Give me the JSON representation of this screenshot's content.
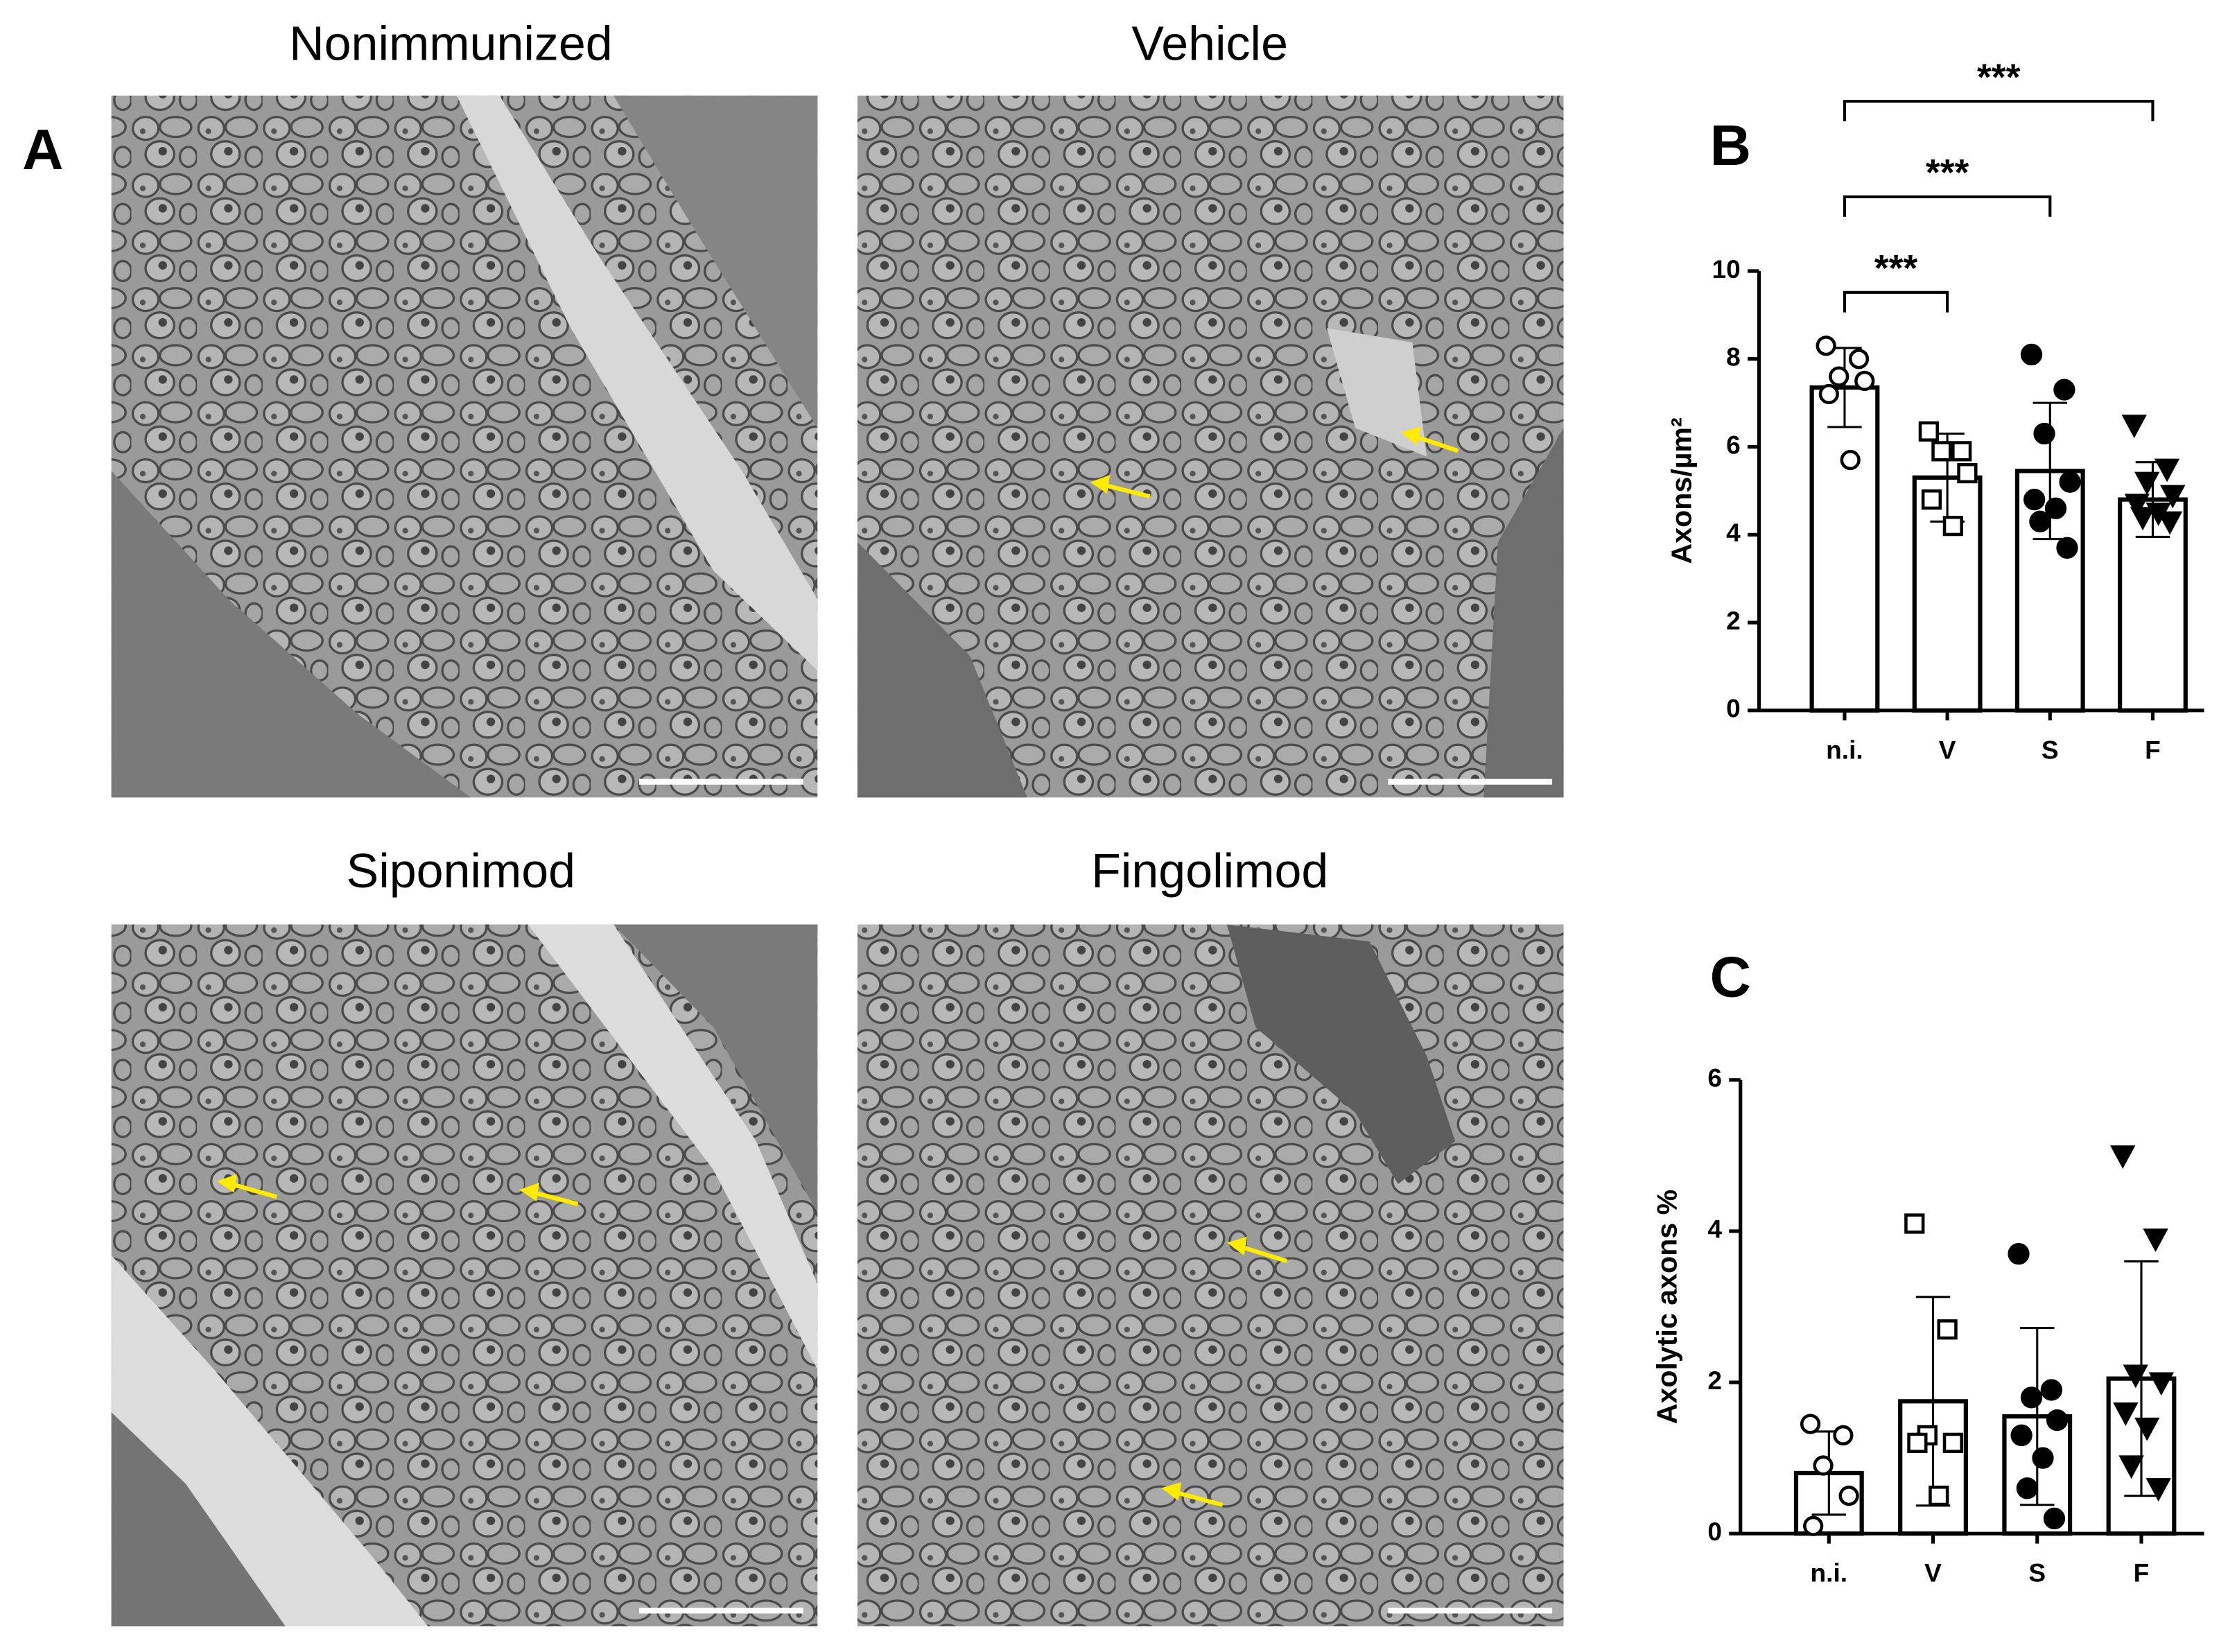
{
  "panel_a": {
    "label": "A",
    "images": [
      {
        "title": "Nonimmunized"
      },
      {
        "title": "Vehicle"
      },
      {
        "title": "Siponimod"
      },
      {
        "title": "Fingolimod"
      }
    ]
  },
  "chart_data": [
    {
      "type": "bar",
      "panel_label": "B",
      "ylabel": "Axons/µm²",
      "categories": [
        "n.i.",
        "V",
        "S",
        "F"
      ],
      "values": [
        7.35,
        5.3,
        5.45,
        4.8
      ],
      "errors": [
        0.9,
        1.0,
        1.55,
        0.85
      ],
      "points": [
        [
          8.3,
          8.0,
          7.6,
          7.5,
          7.2,
          5.7
        ],
        [
          6.35,
          5.9,
          5.9,
          5.4,
          4.8,
          4.2
        ],
        [
          8.1,
          7.3,
          6.3,
          5.2,
          4.8,
          4.6,
          4.3,
          3.7
        ],
        [
          6.5,
          5.5,
          5.2,
          4.9,
          4.7,
          4.5,
          4.4,
          4.3
        ]
      ],
      "markers": [
        "open-circle",
        "open-square",
        "filled-circle",
        "filled-triangle"
      ],
      "color": "#ffffff",
      "ylim": [
        0,
        10
      ],
      "yticks": [
        0,
        2,
        4,
        6,
        8,
        10
      ],
      "significance": [
        {
          "from": 0,
          "to": 1,
          "label": "***"
        },
        {
          "from": 0,
          "to": 2,
          "label": "***"
        },
        {
          "from": 0,
          "to": 3,
          "label": "***"
        }
      ]
    },
    {
      "type": "bar",
      "panel_label": "C",
      "ylabel": "Axolytic axons %",
      "categories": [
        "n.i.",
        "V",
        "S",
        "F"
      ],
      "values": [
        0.8,
        1.75,
        1.55,
        2.05
      ],
      "errors": [
        0.55,
        1.38,
        1.17,
        1.55
      ],
      "points": [
        [
          1.45,
          1.3,
          0.9,
          0.5,
          0.1
        ],
        [
          4.1,
          2.7,
          1.3,
          1.2,
          1.2,
          0.5
        ],
        [
          3.7,
          1.9,
          1.8,
          1.5,
          1.3,
          1.0,
          0.6,
          0.2
        ],
        [
          5.0,
          3.9,
          2.1,
          2.0,
          1.6,
          1.4,
          0.9,
          0.6
        ]
      ],
      "markers": [
        "open-circle",
        "open-square",
        "filled-circle",
        "filled-triangle"
      ],
      "color": "#ffffff",
      "ylim": [
        0,
        6
      ],
      "yticks": [
        0,
        2,
        4,
        6
      ]
    }
  ]
}
